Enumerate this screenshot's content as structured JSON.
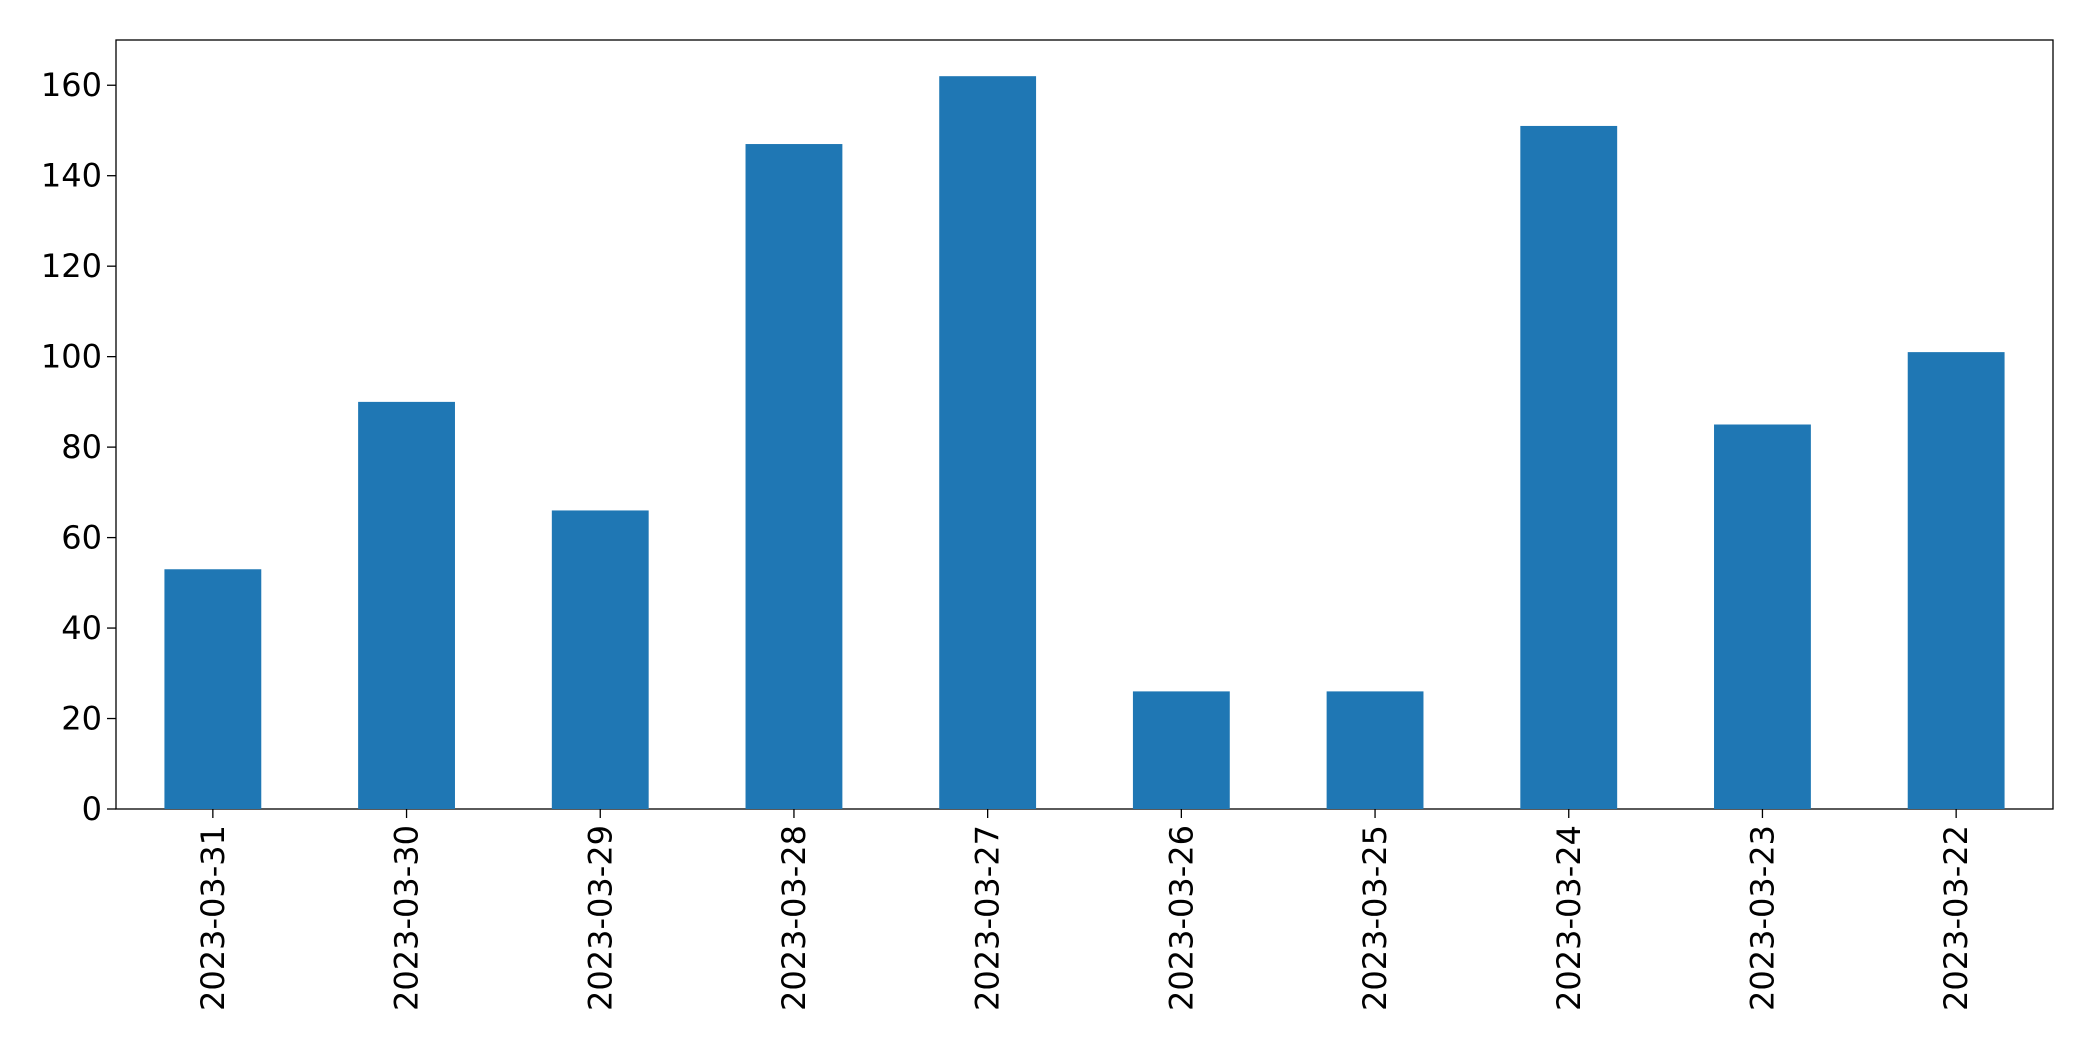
{
  "chart_data": {
    "type": "bar",
    "categories": [
      "2023-03-31",
      "2023-03-30",
      "2023-03-29",
      "2023-03-28",
      "2023-03-27",
      "2023-03-26",
      "2023-03-25",
      "2023-03-24",
      "2023-03-23",
      "2023-03-22"
    ],
    "values": [
      53,
      90,
      66,
      147,
      162,
      26,
      26,
      151,
      85,
      101
    ],
    "color": "#1f77b4",
    "ylim": [
      0,
      170
    ],
    "yticks": [
      0,
      20,
      40,
      60,
      80,
      100,
      120,
      140,
      160
    ],
    "grid": false
  }
}
